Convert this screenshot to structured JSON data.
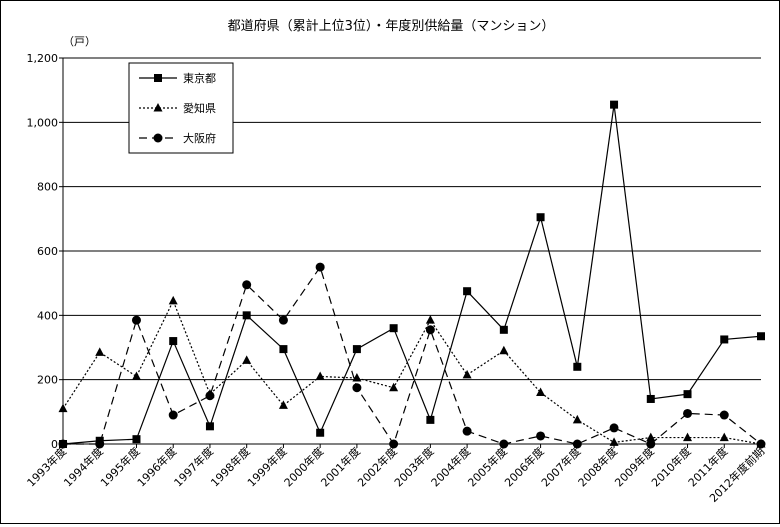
{
  "chart_data": {
    "type": "line",
    "title": "都道府県（累計上位3位）・年度別供給量（マンション）",
    "ylabel": "（戸）",
    "xlabel": "",
    "ylim": [
      0,
      1200
    ],
    "yticks": [
      "0",
      "200",
      "400",
      "600",
      "800",
      "1,000",
      "1,200"
    ],
    "grid": true,
    "legend": "top-left",
    "categories": [
      "1993年度",
      "1994年度",
      "1995年度",
      "1996年度",
      "1997年度",
      "1998年度",
      "1999年度",
      "2000年度",
      "2001年度",
      "2002年度",
      "2003年度",
      "2004年度",
      "2005年度",
      "2006年度",
      "2007年度",
      "2008年度",
      "2009年度",
      "2010年度",
      "2011年度",
      "2012年度前期"
    ],
    "series": [
      {
        "name": "東京都",
        "marker": "square",
        "dash": "solid",
        "values": [
          0,
          10,
          15,
          320,
          55,
          400,
          295,
          35,
          295,
          360,
          75,
          475,
          355,
          705,
          240,
          1055,
          140,
          155,
          325,
          335
        ]
      },
      {
        "name": "愛知県",
        "marker": "triangle",
        "dash": "dotted",
        "values": [
          110,
          285,
          210,
          445,
          155,
          260,
          120,
          210,
          205,
          175,
          385,
          215,
          290,
          160,
          75,
          5,
          20,
          20,
          20,
          0
        ]
      },
      {
        "name": "大阪府",
        "marker": "circle",
        "dash": "dashed",
        "values": [
          0,
          0,
          385,
          90,
          150,
          495,
          385,
          550,
          175,
          0,
          355,
          40,
          0,
          25,
          0,
          50,
          0,
          95,
          90,
          0
        ]
      }
    ]
  }
}
